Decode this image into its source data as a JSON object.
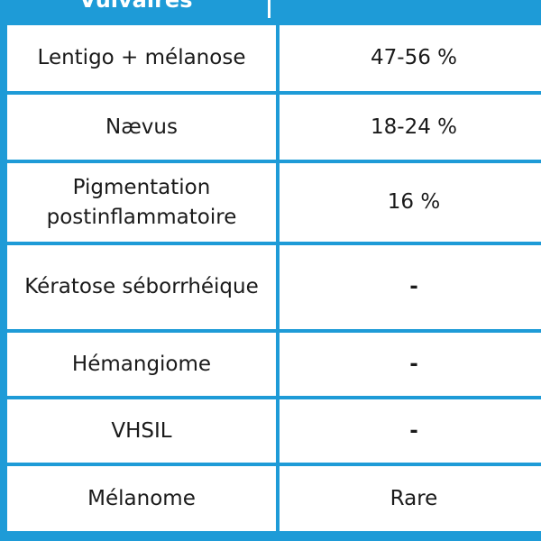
{
  "header": {
    "col1": "Vulvaires",
    "col2": ""
  },
  "rows": [
    {
      "lesion": "Lentigo + mélanose",
      "frequency": "47-56 %"
    },
    {
      "lesion": "Nævus",
      "frequency": "18-24 %"
    },
    {
      "lesion": "Pigmentation postinflammatoire",
      "frequency": "16 %"
    },
    {
      "lesion": "Kératose séborrhéique",
      "frequency": "-"
    },
    {
      "lesion": "Hémangiome",
      "frequency": "-"
    },
    {
      "lesion": "VHSIL",
      "frequency": "-"
    },
    {
      "lesion": "Mélanome",
      "frequency": "Rare"
    }
  ],
  "colors": {
    "accent": "#1e9bd7",
    "cell": "#ffffff",
    "text": "#1a1a1a"
  }
}
